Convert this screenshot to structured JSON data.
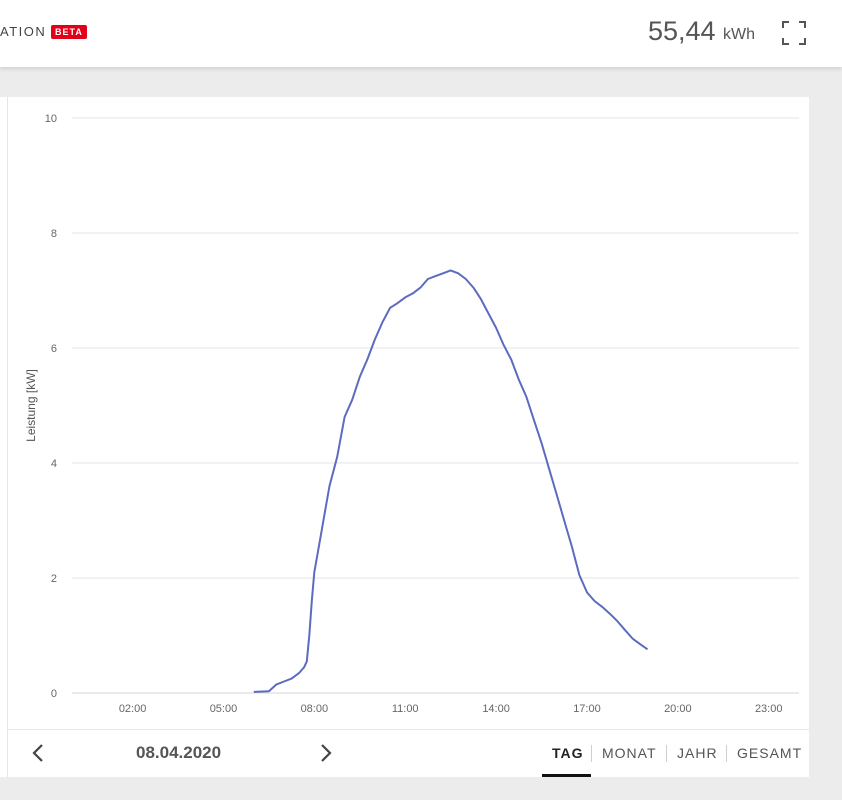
{
  "header": {
    "title_fragment": "ATION",
    "badge": "BETA",
    "energy_value": "55,44",
    "energy_unit": "kWh"
  },
  "footer": {
    "date": "08.04.2020",
    "tabs": [
      {
        "label": "TAG",
        "active": true
      },
      {
        "label": "MONAT",
        "active": false
      },
      {
        "label": "JAHR",
        "active": false
      },
      {
        "label": "GESAMT",
        "active": false
      }
    ]
  },
  "colors": {
    "line": "#5c6bc0",
    "badge": "#e2001a"
  },
  "chart_data": {
    "type": "line",
    "ylabel": "Leistung [kW]",
    "xlabel": "",
    "ylim": [
      0,
      10
    ],
    "yticks": [
      0,
      2,
      4,
      6,
      8,
      10
    ],
    "xlim": [
      "00:00",
      "24:00"
    ],
    "xticks": [
      "02:00",
      "05:00",
      "08:00",
      "11:00",
      "14:00",
      "17:00",
      "20:00",
      "23:00"
    ],
    "grid": true,
    "series": [
      {
        "x": [
          "06:00",
          "06:30",
          "06:45",
          "07:00",
          "07:15",
          "07:30",
          "07:40",
          "07:45",
          "07:50",
          "07:55",
          "08:00",
          "08:10",
          "08:20",
          "08:30",
          "08:45",
          "09:00",
          "09:15",
          "09:30",
          "09:45",
          "10:00",
          "10:15",
          "10:30",
          "10:45",
          "11:00",
          "11:15",
          "11:30",
          "11:45",
          "12:00",
          "12:15",
          "12:30",
          "12:45",
          "13:00",
          "13:15",
          "13:30",
          "13:45",
          "14:00",
          "14:15",
          "14:30",
          "14:45",
          "15:00",
          "15:15",
          "15:30",
          "15:45",
          "16:00",
          "16:15",
          "16:30",
          "16:45",
          "17:00",
          "17:15",
          "17:30",
          "17:45",
          "18:00",
          "18:15",
          "18:30",
          "18:45",
          "19:00"
        ],
        "values": [
          0.02,
          0.03,
          0.15,
          0.2,
          0.25,
          0.35,
          0.45,
          0.55,
          1.0,
          1.6,
          2.1,
          2.6,
          3.1,
          3.6,
          4.1,
          4.8,
          5.1,
          5.5,
          5.8,
          6.15,
          6.45,
          6.7,
          6.78,
          6.88,
          6.95,
          7.05,
          7.2,
          7.25,
          7.3,
          7.35,
          7.3,
          7.2,
          7.05,
          6.85,
          6.6,
          6.35,
          6.05,
          5.8,
          5.45,
          5.15,
          4.75,
          4.35,
          3.9,
          3.45,
          3.0,
          2.55,
          2.05,
          1.75,
          1.6,
          1.5,
          1.38,
          1.25,
          1.1,
          0.95,
          0.85,
          0.76
        ]
      }
    ]
  }
}
